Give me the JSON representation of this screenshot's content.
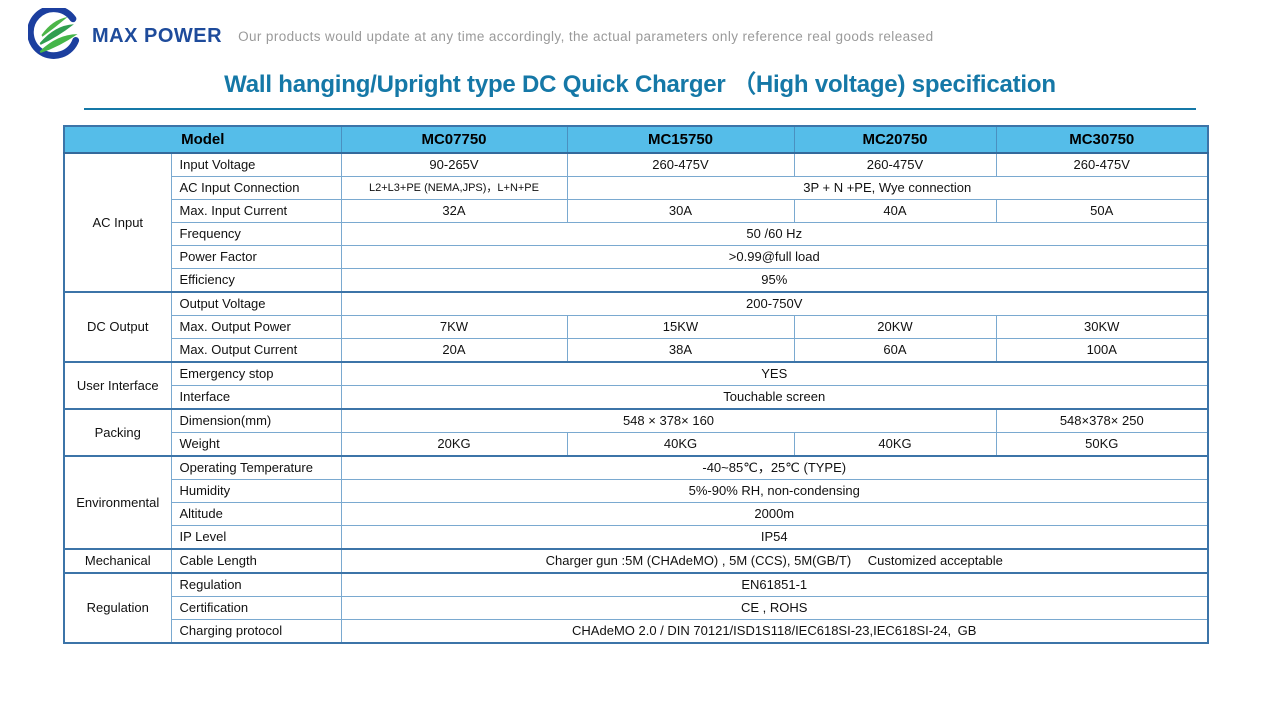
{
  "brand": {
    "name": "MAX POWER",
    "tagline": "Our products would update at any time accordingly, the actual parameters only reference real goods released",
    "logo_icon": "leaf-circle-logo"
  },
  "title": "Wall hanging/Upright type DC Quick Charger （High voltage) specification",
  "colors": {
    "brand_blue": "#1e4b9b",
    "tagline_gray": "#9a9a9a",
    "title_teal": "#1578a7",
    "header_bg": "#55bde9",
    "border_thick": "#3c74a8",
    "border_thin": "#7aa9d0",
    "logo_ring_blue": "#1c3f9f",
    "logo_green": "#3fae49"
  },
  "table": {
    "model_header": "Model",
    "models": [
      "MC07750",
      "MC15750",
      "MC20750",
      "MC30750"
    ],
    "sections": [
      {
        "category": "AC Input",
        "rows": [
          {
            "param": "Input Voltage",
            "cells": [
              {
                "text": "90-265V",
                "span": 1
              },
              {
                "text": "260-475V",
                "span": 1
              },
              {
                "text": "260-475V",
                "span": 1
              },
              {
                "text": "260-475V",
                "span": 1
              }
            ]
          },
          {
            "param": "AC Input Connection",
            "cells": [
              {
                "text": "L2+L3+PE  (NEMA,JPS)，L+N+PE",
                "span": 1,
                "small": true
              },
              {
                "text": "3P + N +PE, Wye connection",
                "span": 3
              }
            ]
          },
          {
            "param": "Max. Input Current",
            "cells": [
              {
                "text": "32A",
                "span": 1
              },
              {
                "text": "30A",
                "span": 1
              },
              {
                "text": "40A",
                "span": 1
              },
              {
                "text": "50A",
                "span": 1
              }
            ]
          },
          {
            "param": "Frequency",
            "cells": [
              {
                "text": "50 /60 Hz",
                "span": 4
              }
            ]
          },
          {
            "param": "Power Factor",
            "cells": [
              {
                "text": ">0.99@full load",
                "span": 4
              }
            ]
          },
          {
            "param": "Efficiency",
            "cells": [
              {
                "text": "95%",
                "span": 4
              }
            ]
          }
        ]
      },
      {
        "category": "DC Output",
        "rows": [
          {
            "param": "Output Voltage",
            "cells": [
              {
                "text": "200-750V",
                "span": 4
              }
            ]
          },
          {
            "param": "Max. Output Power",
            "cells": [
              {
                "text": "7KW",
                "span": 1
              },
              {
                "text": "15KW",
                "span": 1
              },
              {
                "text": "20KW",
                "span": 1
              },
              {
                "text": "30KW",
                "span": 1
              }
            ]
          },
          {
            "param": "Max. Output Current",
            "cells": [
              {
                "text": "20A",
                "span": 1
              },
              {
                "text": "38A",
                "span": 1
              },
              {
                "text": "60A",
                "span": 1
              },
              {
                "text": "100A",
                "span": 1
              }
            ]
          }
        ]
      },
      {
        "category": "User Interface",
        "rows": [
          {
            "param": "Emergency stop",
            "cells": [
              {
                "text": "YES",
                "span": 4
              }
            ]
          },
          {
            "param": "Interface",
            "cells": [
              {
                "text": "Touchable screen",
                "span": 4
              }
            ]
          }
        ]
      },
      {
        "category": "Packing",
        "rows": [
          {
            "param": "Dimension(mm)",
            "cells": [
              {
                "text": "548 × 378× 160",
                "span": 3
              },
              {
                "text": "548×378× 250",
                "span": 1
              }
            ]
          },
          {
            "param": "Weight",
            "cells": [
              {
                "text": "20KG",
                "span": 1
              },
              {
                "text": "40KG",
                "span": 1
              },
              {
                "text": "40KG",
                "span": 1
              },
              {
                "text": "50KG",
                "span": 1
              }
            ]
          }
        ]
      },
      {
        "category": "Environmental",
        "rows": [
          {
            "param": "Operating Temperature",
            "cells": [
              {
                "text": "-40~85℃，25℃ (TYPE)",
                "span": 4
              }
            ]
          },
          {
            "param": "Humidity",
            "cells": [
              {
                "text": "5%-90% RH, non-condensing",
                "span": 4
              }
            ]
          },
          {
            "param": "Altitude",
            "cells": [
              {
                "text": "2000m",
                "span": 4
              }
            ]
          },
          {
            "param": "IP Level",
            "cells": [
              {
                "text": "IP54",
                "span": 4
              }
            ]
          }
        ]
      },
      {
        "category": "Mechanical",
        "rows": [
          {
            "param": "Cable Length",
            "cells": [
              {
                "text": "Charger gun :5M (CHAdeMO) , 5M (CCS), 5M(GB/T)　 Customized acceptable",
                "span": 4
              }
            ]
          }
        ]
      },
      {
        "category": "Regulation",
        "rows": [
          {
            "param": "Regulation",
            "cells": [
              {
                "text": "EN61851-1",
                "span": 4
              }
            ]
          },
          {
            "param": "Certification",
            "cells": [
              {
                "text": "CE , ROHS",
                "span": 4
              }
            ]
          },
          {
            "param": "Charging protocol",
            "cells": [
              {
                "text": "CHAdeMO 2.0 / DIN 70121/ISD1S118/IEC618SI-23,IEC618SI-24, GB",
                "span": 4
              }
            ]
          }
        ]
      }
    ]
  }
}
